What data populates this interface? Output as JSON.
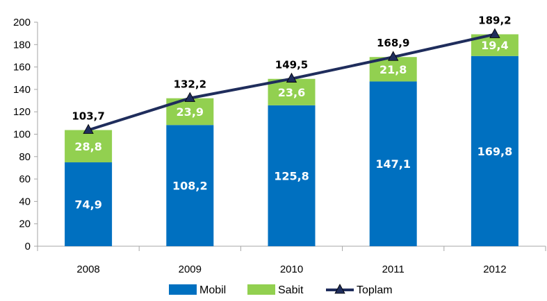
{
  "chart_data": {
    "type": "bar",
    "stacked": true,
    "categories": [
      "2008",
      "2009",
      "2010",
      "2011",
      "2012"
    ],
    "series": [
      {
        "name": "Mobil",
        "type": "bar",
        "color": "#0070C0",
        "values": [
          74.9,
          108.2,
          125.8,
          147.1,
          169.8
        ]
      },
      {
        "name": "Sabit",
        "type": "bar",
        "color": "#92D050",
        "values": [
          28.8,
          23.9,
          23.6,
          21.8,
          19.4
        ]
      },
      {
        "name": "Toplam",
        "type": "line",
        "color": "#1F2D5C",
        "marker": "triangle",
        "values": [
          103.7,
          132.2,
          149.5,
          168.9,
          189.2
        ]
      }
    ],
    "data_labels": {
      "Mobil": [
        "74,9",
        "108,2",
        "125,8",
        "147,1",
        "169,8"
      ],
      "Sabit": [
        "28,8",
        "23,9",
        "23,6",
        "21,8",
        "19,4"
      ],
      "Toplam": [
        "103,7",
        "132,2",
        "149,5",
        "168,9",
        "189,2"
      ]
    },
    "y_ticks": [
      "0",
      "20",
      "40",
      "60",
      "80",
      "100",
      "120",
      "140",
      "160",
      "180",
      "200"
    ],
    "ylim": [
      0,
      200
    ],
    "grid": false,
    "legend_position": "bottom"
  }
}
